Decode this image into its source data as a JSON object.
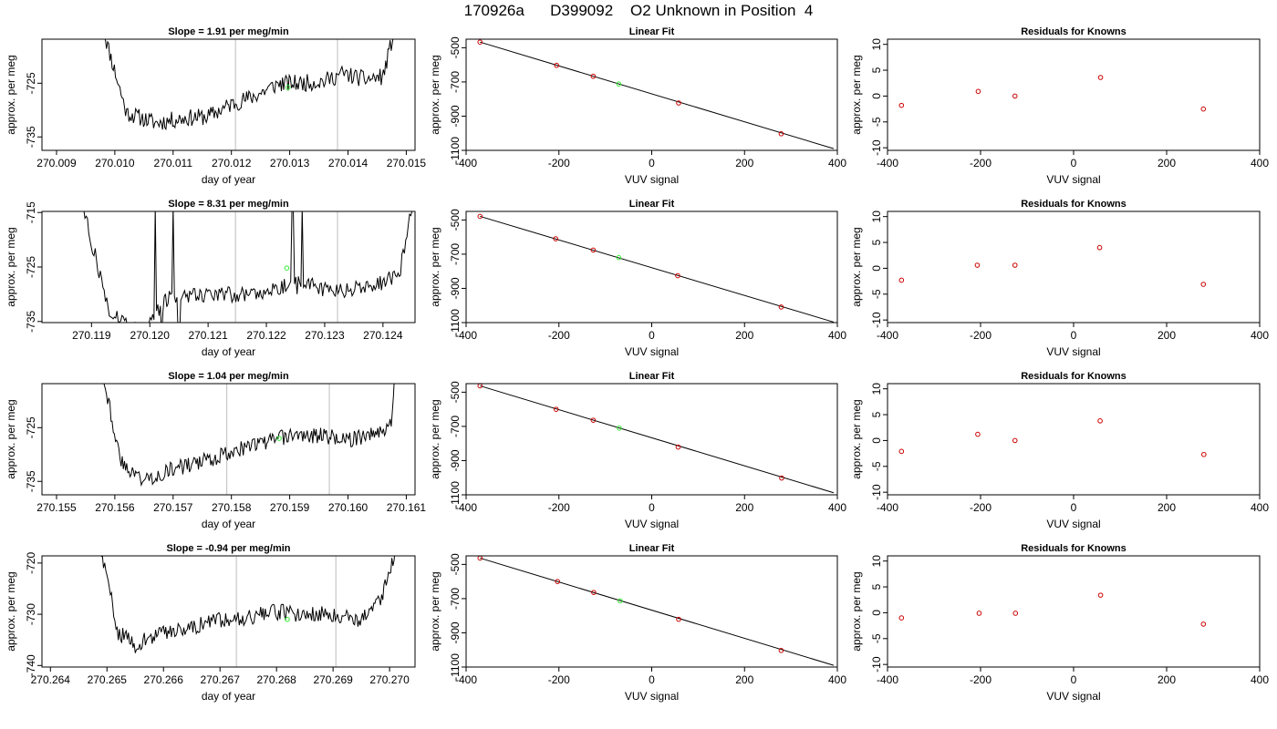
{
  "figure": {
    "title": "170926a      D399092    O2 Unknown in Position  4"
  },
  "chart_data": [
    {
      "type": "line",
      "panel": "time-series",
      "row": 1,
      "title": "Slope =  1.91  per meg/min",
      "xlabel": "day of year",
      "ylabel": "approx. per meg",
      "xlim": [
        270.00875,
        270.01515
      ],
      "ylim": [
        -737.5,
        -716.8
      ],
      "xticks": [
        270.009,
        270.01,
        270.011,
        270.012,
        270.013,
        270.014,
        270.015
      ],
      "xtick_labels": [
        "270.009",
        "270.010",
        "270.011",
        "270.012",
        "270.013",
        "270.014",
        "270.015"
      ],
      "yticks": [
        -725,
        -735
      ],
      "ytick_labels": [
        "-725",
        "-735"
      ],
      "vlines": [
        270.01207,
        270.01382
      ],
      "line_color": "#000000",
      "vline_color": "#c8c8c8",
      "marker_color": "#33ee33",
      "marker": {
        "x": 270.01297,
        "y": -725.8
      },
      "trend": [
        [
          270.0098,
          -715
        ],
        [
          270.0102,
          -730.5
        ],
        [
          270.0107,
          -732.4
        ],
        [
          270.0112,
          -731.5
        ],
        [
          270.0116,
          -731.2
        ],
        [
          270.012,
          -728.9
        ],
        [
          270.0124,
          -727.4
        ],
        [
          270.0128,
          -725.1
        ],
        [
          270.0132,
          -725.0
        ],
        [
          270.0136,
          -724.6
        ],
        [
          270.0139,
          -723.2
        ],
        [
          270.0143,
          -724.3
        ],
        [
          270.0146,
          -723.8
        ],
        [
          270.0148,
          -715
        ]
      ],
      "noise": 1.6,
      "seed": 11
    },
    {
      "type": "line",
      "panel": "time-series",
      "row": 2,
      "title": "Slope =  8.31  per meg/min",
      "xlabel": "day of year",
      "ylabel": "approx. per meg",
      "xlim": [
        270.11815,
        270.12455
      ],
      "ylim": [
        -735.2,
        -714.8
      ],
      "xticks": [
        270.119,
        270.12,
        270.121,
        270.122,
        270.123,
        270.124
      ],
      "xtick_labels": [
        "270.119",
        "270.120",
        "270.121",
        "270.122",
        "270.123",
        "270.124"
      ],
      "yticks": [
        -715,
        -725,
        -735
      ],
      "ytick_labels": [
        "-715",
        "-725",
        "-735"
      ],
      "vlines": [
        270.12147,
        270.12322
      ],
      "line_color": "#000000",
      "vline_color": "#c8c8c8",
      "marker_color": "#33ee33",
      "marker": {
        "x": 270.12235,
        "y": -725.2
      },
      "trend": [
        [
          270.1188,
          -712
        ],
        [
          270.1193,
          -733
        ],
        [
          270.11985,
          -737
        ],
        [
          270.1203,
          -731
        ],
        [
          270.1207,
          -730.0
        ],
        [
          270.1212,
          -729.8
        ],
        [
          270.1216,
          -730.2
        ],
        [
          270.1221,
          -729.0
        ],
        [
          270.1226,
          -727.5
        ],
        [
          270.1231,
          -729.5
        ],
        [
          270.1236,
          -729.0
        ],
        [
          270.124,
          -728.0
        ],
        [
          270.1243,
          -725.5
        ],
        [
          270.1245,
          -714
        ]
      ],
      "spikes": [
        [
          270.1201,
          -714
        ],
        [
          270.1202,
          -738
        ],
        [
          270.1204,
          -714
        ],
        [
          270.1205,
          -738
        ],
        [
          270.12245,
          -714
        ],
        [
          270.12252,
          -730
        ],
        [
          270.12262,
          -714
        ]
      ],
      "noise": 1.5,
      "seed": 27
    },
    {
      "type": "line",
      "panel": "time-series",
      "row": 3,
      "title": "Slope =  1.04  per meg/min",
      "xlabel": "day of year",
      "ylabel": "approx. per meg",
      "xlim": [
        270.15475,
        270.16115
      ],
      "ylim": [
        -737.5,
        -716.8
      ],
      "xticks": [
        270.155,
        270.156,
        270.157,
        270.158,
        270.159,
        270.16,
        270.161
      ],
      "xtick_labels": [
        "270.155",
        "270.156",
        "270.157",
        "270.158",
        "270.159",
        "270.160",
        "270.161"
      ],
      "yticks": [
        -725,
        -735
      ],
      "ytick_labels": [
        "-725",
        "-735"
      ],
      "vlines": [
        270.15792,
        270.15968
      ],
      "line_color": "#000000",
      "vline_color": "#c8c8c8",
      "marker_color": "#33ee33",
      "marker": {
        "x": 270.15882,
        "y": -727.0
      },
      "trend": [
        [
          270.1558,
          -715
        ],
        [
          270.1561,
          -731.5
        ],
        [
          270.1565,
          -734.8
        ],
        [
          270.157,
          -732.7
        ],
        [
          270.1575,
          -731.4
        ],
        [
          270.158,
          -729.4
        ],
        [
          270.1585,
          -727.9
        ],
        [
          270.159,
          -726.5
        ],
        [
          270.1595,
          -726.4
        ],
        [
          270.16,
          -727.3
        ],
        [
          270.1605,
          -726.0
        ],
        [
          270.16075,
          -724.0
        ],
        [
          270.1608,
          -715
        ]
      ],
      "noise": 1.5,
      "seed": 43
    },
    {
      "type": "line",
      "panel": "time-series",
      "row": 4,
      "title": "Slope =  -0.94  per meg/min",
      "xlabel": "day of year",
      "ylabel": "approx. per meg",
      "xlim": [
        270.26385,
        270.27045
      ],
      "ylim": [
        -740.3,
        -718.6
      ],
      "xticks": [
        270.264,
        270.265,
        270.266,
        270.267,
        270.268,
        270.269,
        270.27
      ],
      "xtick_labels": [
        "270.264",
        "270.265",
        "270.266",
        "270.267",
        "270.268",
        "270.269",
        "270.270"
      ],
      "yticks": [
        -720,
        -730,
        -740
      ],
      "ytick_labels": [
        "-720",
        "-730",
        "-740"
      ],
      "vlines": [
        270.26729,
        270.26905
      ],
      "line_color": "#000000",
      "vline_color": "#c8c8c8",
      "marker_color": "#33ee33",
      "marker": {
        "x": 270.26819,
        "y": -731.0
      },
      "trend": [
        [
          270.2649,
          -718
        ],
        [
          270.2652,
          -733.5
        ],
        [
          270.2655,
          -736.0
        ],
        [
          270.266,
          -733.5
        ],
        [
          270.2665,
          -732.5
        ],
        [
          270.267,
          -731.0
        ],
        [
          270.2675,
          -730.5
        ],
        [
          270.268,
          -729.5
        ],
        [
          270.2685,
          -730.0
        ],
        [
          270.269,
          -730.0
        ],
        [
          270.2695,
          -731.0
        ],
        [
          270.26985,
          -727.0
        ],
        [
          270.2701,
          -718
        ]
      ],
      "noise": 1.6,
      "seed": 59
    },
    {
      "type": "scatter",
      "panel": "linear-fit",
      "row": 1,
      "title": "Linear Fit",
      "xlabel": "VUV signal",
      "ylabel": "approx. per meg",
      "xlim": [
        -400,
        400
      ],
      "ylim": [
        -1100,
        -450
      ],
      "xticks": [
        -400,
        -200,
        0,
        200,
        400
      ],
      "xtick_labels": [
        "-400",
        "-200",
        "0",
        "200",
        "400"
      ],
      "yticks": [
        -500,
        -700,
        -900,
        -1100
      ],
      "ytick_labels": [
        "-500",
        "-700",
        "-900",
        "-1100"
      ],
      "points": [
        [
          -370,
          -467
        ],
        [
          -205,
          -603
        ],
        [
          -126,
          -667
        ],
        [
          58,
          -823
        ],
        [
          279,
          -1003
        ]
      ],
      "unknown": [
        -71,
        -712
      ],
      "fit_line": [
        [
          -370,
          -467
        ],
        [
          392,
          -1090
        ]
      ],
      "point_color": "#cc0000",
      "unknown_color": "#33ee33",
      "line_color": "#000000"
    },
    {
      "type": "scatter",
      "panel": "linear-fit",
      "row": 2,
      "title": "Linear Fit",
      "xlabel": "VUV signal",
      "ylabel": "approx. per meg",
      "xlim": [
        -400,
        400
      ],
      "ylim": [
        -1100,
        -450
      ],
      "xticks": [
        -400,
        -200,
        0,
        200,
        400
      ],
      "xtick_labels": [
        "-400",
        "-200",
        "0",
        "200",
        "400"
      ],
      "yticks": [
        -500,
        -700,
        -900,
        -1100
      ],
      "ytick_labels": [
        "-500",
        "-700",
        "-900",
        "-1100"
      ],
      "points": [
        [
          -370,
          -479
        ],
        [
          -207,
          -610
        ],
        [
          -126,
          -676
        ],
        [
          56,
          -826
        ],
        [
          279,
          -1009
        ]
      ],
      "unknown": [
        -71,
        -720
      ],
      "fit_line": [
        [
          -370,
          -479
        ],
        [
          392,
          -1097
        ]
      ],
      "point_color": "#cc0000",
      "unknown_color": "#33ee33",
      "line_color": "#000000"
    },
    {
      "type": "scatter",
      "panel": "linear-fit",
      "row": 3,
      "title": "Linear Fit",
      "xlabel": "VUV signal",
      "ylabel": "approx. per meg",
      "xlim": [
        -400,
        400
      ],
      "ylim": [
        -1100,
        -450
      ],
      "xticks": [
        -400,
        -200,
        0,
        200,
        400
      ],
      "xtick_labels": [
        "-400",
        "-200",
        "0",
        "200",
        "400"
      ],
      "yticks": [
        -500,
        -700,
        -900,
        -1100
      ],
      "ytick_labels": [
        "-500",
        "-700",
        "-900",
        "-1100"
      ],
      "points": [
        [
          -370,
          -463
        ],
        [
          -206,
          -600
        ],
        [
          -126,
          -664
        ],
        [
          57,
          -821
        ],
        [
          280,
          -1002
        ]
      ],
      "unknown": [
        -70,
        -710
      ],
      "fit_line": [
        [
          -370,
          -463
        ],
        [
          392,
          -1088
        ]
      ],
      "point_color": "#cc0000",
      "unknown_color": "#33ee33",
      "line_color": "#000000"
    },
    {
      "type": "scatter",
      "panel": "linear-fit",
      "row": 4,
      "title": "Linear Fit",
      "xlabel": "VUV signal",
      "ylabel": "approx. per meg",
      "xlim": [
        -400,
        400
      ],
      "ylim": [
        -1100,
        -450
      ],
      "xticks": [
        -400,
        -200,
        0,
        200,
        400
      ],
      "xtick_labels": [
        "-400",
        "-200",
        "0",
        "200",
        "400"
      ],
      "yticks": [
        -500,
        -700,
        -900,
        -1100
      ],
      "ytick_labels": [
        "-500",
        "-700",
        "-900",
        "-1100"
      ],
      "points": [
        [
          -370,
          -463
        ],
        [
          -203,
          -600
        ],
        [
          -125,
          -664
        ],
        [
          58,
          -821
        ],
        [
          279,
          -1003
        ]
      ],
      "unknown": [
        -68,
        -713
      ],
      "fit_line": [
        [
          -370,
          -463
        ],
        [
          392,
          -1090
        ]
      ],
      "point_color": "#cc0000",
      "unknown_color": "#33ee33",
      "line_color": "#000000"
    },
    {
      "type": "scatter",
      "panel": "residuals",
      "row": 1,
      "title": "Residuals for Knowns",
      "xlabel": "VUV signal",
      "ylabel": "approx. per meg",
      "xlim": [
        -400,
        400
      ],
      "ylim": [
        -10.5,
        11
      ],
      "xticks": [
        -400,
        -200,
        0,
        200,
        400
      ],
      "xtick_labels": [
        "-400",
        "-200",
        "0",
        "200",
        "400"
      ],
      "yticks": [
        10,
        5,
        0,
        -5,
        -10
      ],
      "ytick_labels": [
        "10",
        "5",
        "0",
        "-5",
        "-10"
      ],
      "points": [
        [
          -370,
          -1.8
        ],
        [
          -205,
          0.9
        ],
        [
          -126,
          0.0
        ],
        [
          58,
          3.6
        ],
        [
          279,
          -2.5
        ]
      ],
      "point_color": "#cc0000"
    },
    {
      "type": "scatter",
      "panel": "residuals",
      "row": 2,
      "title": "Residuals for Knowns",
      "xlabel": "VUV signal",
      "ylabel": "approx. per meg",
      "xlim": [
        -400,
        400
      ],
      "ylim": [
        -10.5,
        11
      ],
      "xticks": [
        -400,
        -200,
        0,
        200,
        400
      ],
      "xtick_labels": [
        "-400",
        "-200",
        "0",
        "200",
        "400"
      ],
      "yticks": [
        10,
        5,
        0,
        -5,
        -10
      ],
      "ytick_labels": [
        "10",
        "5",
        "0",
        "-5",
        "-10"
      ],
      "points": [
        [
          -370,
          -2.3
        ],
        [
          -207,
          0.6
        ],
        [
          -126,
          0.6
        ],
        [
          56,
          4.0
        ],
        [
          279,
          -3.1
        ]
      ],
      "point_color": "#cc0000"
    },
    {
      "type": "scatter",
      "panel": "residuals",
      "row": 3,
      "title": "Residuals for Knowns",
      "xlabel": "VUV signal",
      "ylabel": "approx. per meg",
      "xlim": [
        -400,
        400
      ],
      "ylim": [
        -10.5,
        11
      ],
      "xticks": [
        -400,
        -200,
        0,
        200,
        400
      ],
      "xtick_labels": [
        "-400",
        "-200",
        "0",
        "200",
        "400"
      ],
      "yticks": [
        10,
        5,
        0,
        -5,
        -10
      ],
      "ytick_labels": [
        "10",
        "5",
        "0",
        "-5",
        "-10"
      ],
      "points": [
        [
          -370,
          -2.1
        ],
        [
          -206,
          1.2
        ],
        [
          -126,
          0.0
        ],
        [
          57,
          3.8
        ],
        [
          280,
          -2.7
        ]
      ],
      "point_color": "#cc0000"
    },
    {
      "type": "scatter",
      "panel": "residuals",
      "row": 4,
      "title": "Residuals for Knowns",
      "xlabel": "VUV signal",
      "ylabel": "approx. per meg",
      "xlim": [
        -400,
        400
      ],
      "ylim": [
        -10.5,
        11
      ],
      "xticks": [
        -400,
        -200,
        0,
        200,
        400
      ],
      "xtick_labels": [
        "-400",
        "-200",
        "0",
        "200",
        "400"
      ],
      "yticks": [
        10,
        5,
        0,
        -5,
        -10
      ],
      "ytick_labels": [
        "10",
        "5",
        "0",
        "-5",
        "-10"
      ],
      "points": [
        [
          -370,
          -1.0
        ],
        [
          -203,
          -0.1
        ],
        [
          -125,
          -0.1
        ],
        [
          58,
          3.4
        ],
        [
          279,
          -2.2
        ]
      ],
      "point_color": "#cc0000"
    }
  ]
}
